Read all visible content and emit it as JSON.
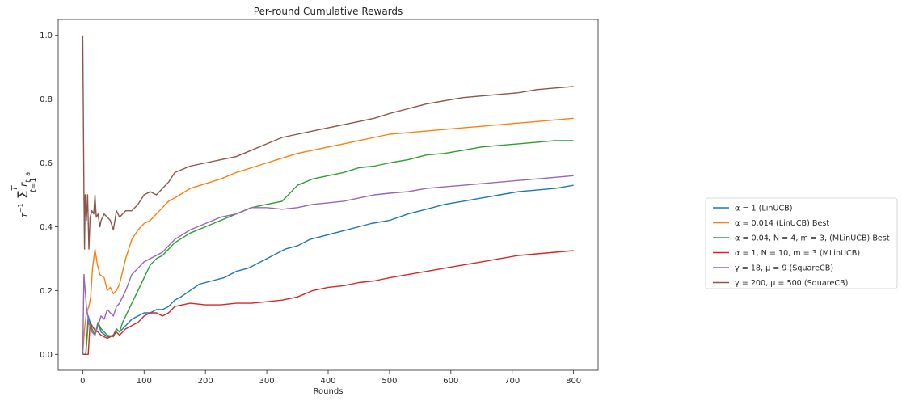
{
  "chart_data": {
    "type": "line",
    "title": "Per-round Cumulative Rewards",
    "xlabel": "Rounds",
    "ylabel": "T⁻¹ Σ_{t=1}^{T} r_{t,a}",
    "xlim": [
      -40,
      840
    ],
    "ylim": [
      -0.05,
      1.05
    ],
    "x_ticks": [
      0,
      100,
      200,
      300,
      400,
      500,
      600,
      700,
      800
    ],
    "y_ticks": [
      "0.0",
      "0.2",
      "0.4",
      "0.6",
      "0.8",
      "1.0"
    ],
    "grid": false,
    "legend_placement": "outside-right",
    "series": [
      {
        "name": "α = 1 (LinUCB)",
        "color": "#1f77b4",
        "points": [
          [
            0,
            0
          ],
          [
            5,
            0
          ],
          [
            9,
            0.12
          ],
          [
            15,
            0.08
          ],
          [
            20,
            0.06
          ],
          [
            25,
            0.1
          ],
          [
            30,
            0.07
          ],
          [
            40,
            0.055
          ],
          [
            50,
            0.06
          ],
          [
            55,
            0.08
          ],
          [
            60,
            0.07
          ],
          [
            70,
            0.09
          ],
          [
            80,
            0.11
          ],
          [
            90,
            0.12
          ],
          [
            100,
            0.13
          ],
          [
            110,
            0.13
          ],
          [
            120,
            0.14
          ],
          [
            130,
            0.14
          ],
          [
            140,
            0.15
          ],
          [
            150,
            0.17
          ],
          [
            160,
            0.18
          ],
          [
            175,
            0.2
          ],
          [
            190,
            0.22
          ],
          [
            210,
            0.23
          ],
          [
            230,
            0.24
          ],
          [
            250,
            0.26
          ],
          [
            270,
            0.27
          ],
          [
            290,
            0.29
          ],
          [
            310,
            0.31
          ],
          [
            330,
            0.33
          ],
          [
            350,
            0.34
          ],
          [
            370,
            0.36
          ],
          [
            390,
            0.37
          ],
          [
            410,
            0.38
          ],
          [
            430,
            0.39
          ],
          [
            450,
            0.4
          ],
          [
            470,
            0.41
          ],
          [
            500,
            0.42
          ],
          [
            530,
            0.44
          ],
          [
            560,
            0.455
          ],
          [
            590,
            0.47
          ],
          [
            620,
            0.48
          ],
          [
            650,
            0.49
          ],
          [
            680,
            0.5
          ],
          [
            710,
            0.51
          ],
          [
            740,
            0.515
          ],
          [
            770,
            0.52
          ],
          [
            800,
            0.53
          ]
        ]
      },
      {
        "name": "α = 0.014 (LinUCB) Best",
        "color": "#ff7f0e",
        "points": [
          [
            0,
            0
          ],
          [
            3,
            0.08
          ],
          [
            6,
            0.13
          ],
          [
            10,
            0.15
          ],
          [
            13,
            0.18
          ],
          [
            16,
            0.27
          ],
          [
            20,
            0.33
          ],
          [
            24,
            0.28
          ],
          [
            28,
            0.25
          ],
          [
            35,
            0.24
          ],
          [
            40,
            0.2
          ],
          [
            45,
            0.21
          ],
          [
            50,
            0.19
          ],
          [
            55,
            0.2
          ],
          [
            60,
            0.22
          ],
          [
            70,
            0.3
          ],
          [
            80,
            0.36
          ],
          [
            90,
            0.39
          ],
          [
            100,
            0.41
          ],
          [
            110,
            0.42
          ],
          [
            120,
            0.44
          ],
          [
            130,
            0.46
          ],
          [
            140,
            0.48
          ],
          [
            150,
            0.49
          ],
          [
            175,
            0.52
          ],
          [
            200,
            0.535
          ],
          [
            225,
            0.55
          ],
          [
            250,
            0.57
          ],
          [
            275,
            0.585
          ],
          [
            300,
            0.6
          ],
          [
            325,
            0.615
          ],
          [
            350,
            0.63
          ],
          [
            375,
            0.64
          ],
          [
            400,
            0.65
          ],
          [
            425,
            0.66
          ],
          [
            450,
            0.67
          ],
          [
            475,
            0.68
          ],
          [
            500,
            0.69
          ],
          [
            530,
            0.695
          ],
          [
            560,
            0.7
          ],
          [
            590,
            0.705
          ],
          [
            620,
            0.71
          ],
          [
            650,
            0.715
          ],
          [
            680,
            0.72
          ],
          [
            710,
            0.725
          ],
          [
            740,
            0.73
          ],
          [
            770,
            0.735
          ],
          [
            800,
            0.74
          ]
        ]
      },
      {
        "name": "α = 0.04, N = 4, m = 3,  (MLinUCB) Best",
        "color": "#2ca02c",
        "points": [
          [
            0,
            0
          ],
          [
            5,
            0
          ],
          [
            9,
            0.1
          ],
          [
            15,
            0.08
          ],
          [
            20,
            0.06
          ],
          [
            25,
            0.1
          ],
          [
            30,
            0.08
          ],
          [
            40,
            0.06
          ],
          [
            50,
            0.055
          ],
          [
            55,
            0.08
          ],
          [
            60,
            0.07
          ],
          [
            65,
            0.1
          ],
          [
            70,
            0.12
          ],
          [
            80,
            0.16
          ],
          [
            90,
            0.2
          ],
          [
            100,
            0.24
          ],
          [
            110,
            0.28
          ],
          [
            120,
            0.3
          ],
          [
            130,
            0.31
          ],
          [
            140,
            0.33
          ],
          [
            150,
            0.35
          ],
          [
            175,
            0.38
          ],
          [
            200,
            0.4
          ],
          [
            225,
            0.42
          ],
          [
            250,
            0.44
          ],
          [
            275,
            0.46
          ],
          [
            300,
            0.47
          ],
          [
            325,
            0.48
          ],
          [
            350,
            0.53
          ],
          [
            375,
            0.55
          ],
          [
            400,
            0.56
          ],
          [
            425,
            0.57
          ],
          [
            450,
            0.585
          ],
          [
            475,
            0.59
          ],
          [
            500,
            0.6
          ],
          [
            530,
            0.61
          ],
          [
            560,
            0.625
          ],
          [
            590,
            0.63
          ],
          [
            620,
            0.64
          ],
          [
            650,
            0.65
          ],
          [
            680,
            0.655
          ],
          [
            710,
            0.66
          ],
          [
            740,
            0.665
          ],
          [
            770,
            0.67
          ],
          [
            800,
            0.67
          ]
        ]
      },
      {
        "name": "α = 1, N = 10, m = 3 (MLinUCB)",
        "color": "#d62728",
        "points": [
          [
            0,
            0
          ],
          [
            5,
            0
          ],
          [
            9,
            0
          ],
          [
            12,
            0.1
          ],
          [
            15,
            0.09
          ],
          [
            20,
            0.075
          ],
          [
            25,
            0.07
          ],
          [
            30,
            0.06
          ],
          [
            40,
            0.05
          ],
          [
            50,
            0.06
          ],
          [
            55,
            0.07
          ],
          [
            60,
            0.06
          ],
          [
            70,
            0.08
          ],
          [
            80,
            0.09
          ],
          [
            90,
            0.1
          ],
          [
            100,
            0.12
          ],
          [
            110,
            0.13
          ],
          [
            120,
            0.13
          ],
          [
            130,
            0.12
          ],
          [
            140,
            0.13
          ],
          [
            150,
            0.15
          ],
          [
            175,
            0.16
          ],
          [
            200,
            0.155
          ],
          [
            225,
            0.155
          ],
          [
            250,
            0.16
          ],
          [
            275,
            0.16
          ],
          [
            300,
            0.165
          ],
          [
            325,
            0.17
          ],
          [
            350,
            0.18
          ],
          [
            375,
            0.2
          ],
          [
            400,
            0.21
          ],
          [
            425,
            0.215
          ],
          [
            450,
            0.225
          ],
          [
            475,
            0.23
          ],
          [
            500,
            0.24
          ],
          [
            530,
            0.25
          ],
          [
            560,
            0.26
          ],
          [
            590,
            0.27
          ],
          [
            620,
            0.28
          ],
          [
            650,
            0.29
          ],
          [
            680,
            0.3
          ],
          [
            710,
            0.31
          ],
          [
            740,
            0.315
          ],
          [
            770,
            0.32
          ],
          [
            800,
            0.325
          ]
        ]
      },
      {
        "name": "γ = 18, μ = 9 (SquareCB)",
        "color": "#9467bd",
        "points": [
          [
            0,
            0
          ],
          [
            2,
            0.25
          ],
          [
            4,
            0.2
          ],
          [
            6,
            0.15
          ],
          [
            10,
            0.1
          ],
          [
            15,
            0.07
          ],
          [
            20,
            0.06
          ],
          [
            25,
            0.09
          ],
          [
            30,
            0.12
          ],
          [
            35,
            0.11
          ],
          [
            40,
            0.14
          ],
          [
            45,
            0.13
          ],
          [
            50,
            0.12
          ],
          [
            55,
            0.15
          ],
          [
            60,
            0.16
          ],
          [
            70,
            0.2
          ],
          [
            80,
            0.25
          ],
          [
            90,
            0.27
          ],
          [
            100,
            0.29
          ],
          [
            110,
            0.3
          ],
          [
            120,
            0.31
          ],
          [
            130,
            0.32
          ],
          [
            140,
            0.34
          ],
          [
            150,
            0.36
          ],
          [
            175,
            0.39
          ],
          [
            200,
            0.41
          ],
          [
            225,
            0.43
          ],
          [
            250,
            0.44
          ],
          [
            275,
            0.46
          ],
          [
            300,
            0.46
          ],
          [
            325,
            0.455
          ],
          [
            350,
            0.46
          ],
          [
            375,
            0.47
          ],
          [
            400,
            0.475
          ],
          [
            425,
            0.48
          ],
          [
            450,
            0.49
          ],
          [
            475,
            0.5
          ],
          [
            500,
            0.505
          ],
          [
            530,
            0.51
          ],
          [
            560,
            0.52
          ],
          [
            590,
            0.525
          ],
          [
            620,
            0.53
          ],
          [
            650,
            0.535
          ],
          [
            680,
            0.54
          ],
          [
            710,
            0.545
          ],
          [
            740,
            0.55
          ],
          [
            770,
            0.555
          ],
          [
            800,
            0.56
          ]
        ]
      },
      {
        "name": "γ = 200, μ = 500 (SquareCB)",
        "color": "#8c564b",
        "points": [
          [
            0,
            1.0
          ],
          [
            2,
            0.5
          ],
          [
            3,
            0.33
          ],
          [
            4,
            0.5
          ],
          [
            6,
            0.42
          ],
          [
            8,
            0.5
          ],
          [
            10,
            0.33
          ],
          [
            12,
            0.43
          ],
          [
            15,
            0.45
          ],
          [
            18,
            0.44
          ],
          [
            20,
            0.5
          ],
          [
            22,
            0.43
          ],
          [
            25,
            0.44
          ],
          [
            28,
            0.4
          ],
          [
            30,
            0.42
          ],
          [
            35,
            0.44
          ],
          [
            40,
            0.43
          ],
          [
            45,
            0.42
          ],
          [
            50,
            0.39
          ],
          [
            55,
            0.45
          ],
          [
            60,
            0.43
          ],
          [
            70,
            0.45
          ],
          [
            80,
            0.45
          ],
          [
            90,
            0.47
          ],
          [
            100,
            0.5
          ],
          [
            110,
            0.51
          ],
          [
            120,
            0.5
          ],
          [
            130,
            0.52
          ],
          [
            140,
            0.54
          ],
          [
            150,
            0.57
          ],
          [
            175,
            0.59
          ],
          [
            200,
            0.6
          ],
          [
            225,
            0.61
          ],
          [
            250,
            0.62
          ],
          [
            275,
            0.64
          ],
          [
            300,
            0.66
          ],
          [
            325,
            0.68
          ],
          [
            350,
            0.69
          ],
          [
            375,
            0.7
          ],
          [
            400,
            0.71
          ],
          [
            425,
            0.72
          ],
          [
            450,
            0.73
          ],
          [
            475,
            0.74
          ],
          [
            500,
            0.755
          ],
          [
            530,
            0.77
          ],
          [
            560,
            0.785
          ],
          [
            590,
            0.795
          ],
          [
            620,
            0.805
          ],
          [
            650,
            0.81
          ],
          [
            680,
            0.815
          ],
          [
            710,
            0.82
          ],
          [
            740,
            0.83
          ],
          [
            770,
            0.835
          ],
          [
            800,
            0.84
          ]
        ]
      }
    ]
  }
}
